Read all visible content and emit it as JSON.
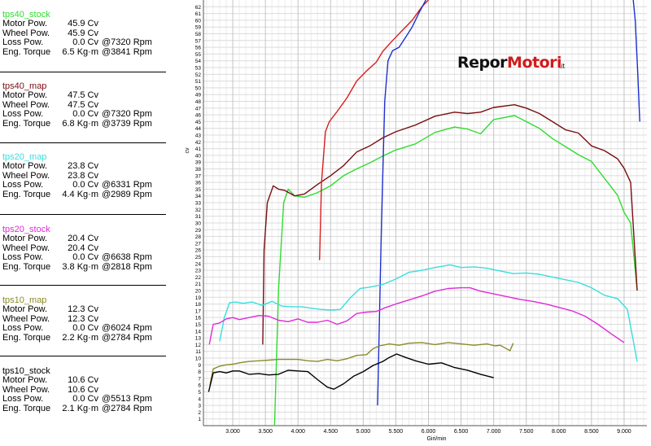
{
  "legend_blocks": [
    {
      "name": "tps40_stock",
      "color": "#2fdc2f",
      "rows": [
        {
          "label": "Motor Pow.",
          "value": "45.9 Cv",
          "at": ""
        },
        {
          "label": "Wheel Pow.",
          "value": "45.9 Cv",
          "at": ""
        },
        {
          "label": "Loss Pow.",
          "value": "0.0 Cv",
          "at": "@7320 Rpm"
        },
        {
          "label": "Eng. Torque",
          "value": "6.5 Kg·m",
          "at": "@3841 Rpm"
        }
      ]
    },
    {
      "name": "tps40_map",
      "color": "#7a0e12",
      "rows": [
        {
          "label": "Motor Pow.",
          "value": "47.5 Cv",
          "at": ""
        },
        {
          "label": "Wheel Pow.",
          "value": "47.5 Cv",
          "at": ""
        },
        {
          "label": "Loss Pow.",
          "value": "0.0 Cv",
          "at": "@7320 Rpm"
        },
        {
          "label": "Eng. Torque",
          "value": "6.8 Kg·m",
          "at": "@3739 Rpm"
        }
      ]
    },
    {
      "name": "tps20_map",
      "color": "#38dede",
      "rows": [
        {
          "label": "Motor Pow.",
          "value": "23.8 Cv",
          "at": ""
        },
        {
          "label": "Wheel Pow.",
          "value": "23.8 Cv",
          "at": ""
        },
        {
          "label": "Loss Pow.",
          "value": "0.0 Cv",
          "at": "@6331 Rpm"
        },
        {
          "label": "Eng. Torque",
          "value": "4.4 Kg·m",
          "at": "@2989 Rpm"
        }
      ]
    },
    {
      "name": "tps20_stock",
      "color": "#e02ad8",
      "rows": [
        {
          "label": "Motor Pow.",
          "value": "20.4 Cv",
          "at": ""
        },
        {
          "label": "Wheel Pow.",
          "value": "20.4 Cv",
          "at": ""
        },
        {
          "label": "Loss Pow.",
          "value": "0.0 Cv",
          "at": "@6638 Rpm"
        },
        {
          "label": "Eng. Torque",
          "value": "3.8 Kg·m",
          "at": "@2818 Rpm"
        }
      ]
    },
    {
      "name": "tps10_map",
      "color": "#8a8a2a",
      "rows": [
        {
          "label": "Motor Pow.",
          "value": "12.3 Cv",
          "at": ""
        },
        {
          "label": "Wheel Pow.",
          "value": "12.3 Cv",
          "at": ""
        },
        {
          "label": "Loss Pow.",
          "value": "0.0 Cv",
          "at": "@6024 Rpm"
        },
        {
          "label": "Eng. Torque",
          "value": "2.2 Kg·m",
          "at": "@2784 Rpm"
        }
      ]
    },
    {
      "name": "tps10_stock",
      "color": "#000000",
      "rows": [
        {
          "label": "Motor Pow.",
          "value": "10.6 Cv",
          "at": ""
        },
        {
          "label": "Wheel Pow.",
          "value": "10.6 Cv",
          "at": ""
        },
        {
          "label": "Loss Pow.",
          "value": "0.0 Cv",
          "at": "@5513 Rpm"
        },
        {
          "label": "Eng. Torque",
          "value": "2.1 Kg·m",
          "at": "@2784 Rpm"
        }
      ]
    }
  ],
  "logo": {
    "part1": "Repor",
    "part2": "Motori",
    "suffix": ".it"
  },
  "chart_data": {
    "type": "line",
    "xlabel": "Giri/min",
    "ylabel": "cv",
    "xlim": [
      2550,
      9350
    ],
    "ylim": [
      0,
      63
    ],
    "x_ticks": [
      3000,
      3500,
      4000,
      4500,
      5000,
      5500,
      6000,
      6500,
      7000,
      7500,
      8000,
      8500,
      9000
    ],
    "x_tick_labels": [
      "3.000",
      "3.500",
      "4.000",
      "4.500",
      "5.000",
      "5.500",
      "6.000",
      "6.500",
      "7.000",
      "7.500",
      "8.000",
      "8.500",
      "9.000"
    ],
    "y_ticks": [
      1,
      2,
      3,
      4,
      5,
      6,
      7,
      8,
      9,
      10,
      11,
      12,
      13,
      14,
      15,
      16,
      17,
      18,
      19,
      20,
      21,
      22,
      23,
      24,
      25,
      26,
      27,
      28,
      29,
      30,
      31,
      32,
      33,
      34,
      35,
      36,
      37,
      38,
      39,
      40,
      41,
      42,
      43,
      44,
      45,
      46,
      47,
      48,
      49,
      50,
      51,
      52,
      53,
      54,
      55,
      56,
      57,
      58,
      59,
      60,
      61,
      62
    ],
    "grid": true,
    "series": [
      {
        "name": "tps40_stock",
        "color": "#2fdc2f",
        "x": [
          3640,
          3700,
          3780,
          3850,
          3950,
          4100,
          4300,
          4500,
          4700,
          4900,
          5100,
          5300,
          5500,
          5800,
          6100,
          6400,
          6600,
          6800,
          7000,
          7320,
          7500,
          7700,
          7900,
          8100,
          8300,
          8500,
          8700,
          8900,
          9000,
          9100,
          9200
        ],
        "y": [
          0,
          20,
          33,
          35,
          34,
          33.8,
          34.5,
          35.5,
          37,
          38,
          38.9,
          39.9,
          40.8,
          41.7,
          43.4,
          44.2,
          43.9,
          43.2,
          45.3,
          45.9,
          45,
          44,
          42.5,
          41.3,
          40.1,
          39.1,
          36.6,
          34.1,
          31.6,
          30,
          20
        ]
      },
      {
        "name": "tps40_map",
        "color": "#7a0e12",
        "x": [
          3460,
          3480,
          3530,
          3620,
          3700,
          3800,
          3950,
          4100,
          4300,
          4500,
          4700,
          4900,
          5100,
          5300,
          5500,
          5800,
          6100,
          6400,
          6600,
          6800,
          7000,
          7320,
          7500,
          7700,
          7900,
          8100,
          8300,
          8500,
          8700,
          8900,
          9000,
          9100,
          9200
        ],
        "y": [
          12,
          26,
          33,
          35.5,
          35,
          34.8,
          34,
          34.3,
          35.7,
          37,
          38.5,
          40.5,
          41.4,
          42.6,
          43.5,
          44.5,
          45.8,
          46.4,
          46.2,
          46.4,
          47.1,
          47.5,
          47,
          46.2,
          45,
          43.8,
          43.3,
          41.4,
          40.7,
          39.5,
          38.1,
          36,
          20
        ]
      },
      {
        "name": "red_top",
        "color": "#d81e1e",
        "x": [
          4330,
          4360,
          4420,
          4480,
          4600,
          4750,
          4900,
          5050,
          5200,
          5300,
          5450,
          5600,
          5750,
          5900,
          6000
        ],
        "y": [
          24.5,
          36,
          43.5,
          45,
          46.5,
          48.5,
          51,
          52.5,
          53.8,
          55.4,
          57,
          58.5,
          60,
          62,
          63
        ]
      },
      {
        "name": "blue_line",
        "color": "#1d2fd0",
        "x": [
          5220,
          5280,
          5330,
          5380,
          5450,
          5550,
          5650,
          5750,
          5850,
          5960
        ],
        "y": [
          3,
          30,
          48,
          54,
          55.5,
          56,
          57.5,
          59,
          61,
          63
        ]
      },
      {
        "name": "blue_right",
        "color": "#1d2fd0",
        "x": [
          9140,
          9170,
          9210,
          9240
        ],
        "y": [
          63,
          60,
          52,
          45
        ]
      },
      {
        "name": "tps20_map",
        "color": "#38dede",
        "x": [
          2800,
          2870,
          2950,
          3050,
          3150,
          3300,
          3450,
          3600,
          3750,
          3900,
          4050,
          4200,
          4350,
          4500,
          4650,
          4800,
          4950,
          5100,
          5300,
          5500,
          5700,
          5900,
          6100,
          6331,
          6500,
          6700,
          6900,
          7100,
          7300,
          7500,
          7700,
          7900,
          8100,
          8300,
          8500,
          8700,
          8900,
          9050,
          9200
        ],
        "y": [
          12.5,
          16,
          18.2,
          18.3,
          18.1,
          18.3,
          17.8,
          18.4,
          17.7,
          17.6,
          17.6,
          17.4,
          17.2,
          17.1,
          17.2,
          18.9,
          20.3,
          20.5,
          20.9,
          21.7,
          22.7,
          23,
          23.4,
          23.8,
          23.4,
          23.5,
          23.3,
          22.9,
          22.5,
          22.6,
          22.4,
          22,
          21.6,
          21.2,
          20.4,
          19.3,
          18.8,
          17.2,
          9.5
        ]
      },
      {
        "name": "tps20_stock",
        "color": "#e02ad8",
        "x": [
          2640,
          2700,
          2800,
          2900,
          3000,
          3100,
          3250,
          3400,
          3550,
          3700,
          3850,
          4000,
          4150,
          4300,
          4450,
          4600,
          4750,
          4900,
          5050,
          5200,
          5350,
          5500,
          5700,
          5900,
          6100,
          6300,
          6500,
          6638,
          6800,
          7000,
          7200,
          7400,
          7600,
          7800,
          8000,
          8200,
          8400,
          8600,
          8800,
          9000
        ],
        "y": [
          12,
          15,
          15.2,
          15.8,
          16,
          15.7,
          16,
          16.3,
          16.2,
          15.6,
          15.4,
          15.8,
          15.3,
          15.3,
          15.6,
          15,
          15.5,
          16.6,
          16.8,
          16.9,
          17.5,
          18,
          18.6,
          19.2,
          19.9,
          20.3,
          20.4,
          20.4,
          19.9,
          19.5,
          19.1,
          18.7,
          18.4,
          18,
          17.5,
          17,
          16.2,
          15,
          13.6,
          12.3
        ]
      },
      {
        "name": "tps10_map",
        "color": "#8a8a2a",
        "x": [
          2650,
          2700,
          2800,
          2900,
          3000,
          3100,
          3250,
          3400,
          3550,
          3700,
          3850,
          4000,
          4150,
          4300,
          4450,
          4600,
          4750,
          4900,
          5050,
          5150,
          5250,
          5400,
          5550,
          5700,
          5900,
          6100,
          6300,
          6500,
          6700,
          6900,
          7024,
          7100,
          7250,
          7300
        ],
        "y": [
          6,
          8.4,
          8.8,
          9,
          9.1,
          9.3,
          9.5,
          9.6,
          9.7,
          9.8,
          9.8,
          9.8,
          9.6,
          9.5,
          9.8,
          9.6,
          9.9,
          10.4,
          10.5,
          11.4,
          11.8,
          12.1,
          11.9,
          12.2,
          12.3,
          12,
          12.3,
          12.1,
          11.9,
          12.1,
          11.8,
          11.9,
          11.1,
          12.2
        ]
      },
      {
        "name": "tps10_stock",
        "color": "#000000",
        "x": [
          2630,
          2700,
          2800,
          2900,
          3000,
          3100,
          3250,
          3400,
          3550,
          3700,
          3850,
          4000,
          4150,
          4300,
          4450,
          4550,
          4700,
          4850,
          5000,
          5150,
          5300,
          5400,
          5513,
          5650,
          5800,
          6000,
          6200,
          6400,
          6600,
          6800,
          7000
        ],
        "y": [
          5,
          7.8,
          8,
          7.8,
          8.1,
          8.1,
          7.6,
          7.7,
          7.5,
          7.6,
          8.2,
          8.1,
          8,
          6.8,
          5.7,
          5.4,
          6.2,
          7.3,
          8,
          8.9,
          9.5,
          10.1,
          10.6,
          10.1,
          9.6,
          9.1,
          9.3,
          8.6,
          8.2,
          7.6,
          7.1
        ]
      }
    ]
  }
}
